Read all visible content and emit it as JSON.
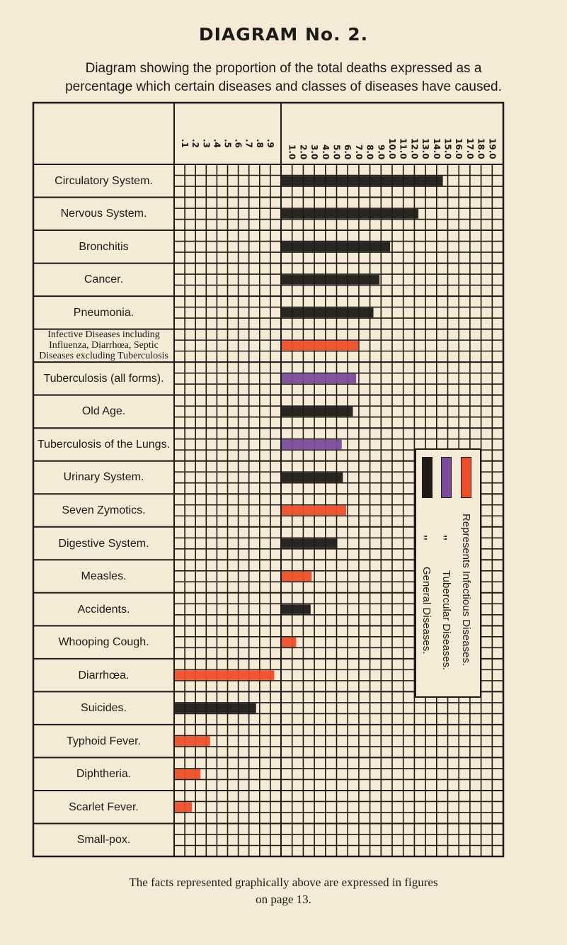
{
  "header": {
    "title": "DIAGRAM No. 2.",
    "subtitle_line1": "Diagram showing the proportion of the total deaths expressed as a",
    "subtitle_line2": "percentage which certain diseases and classes of diseases have caused."
  },
  "footer": {
    "line1": "The facts represented graphically above are expressed in figures",
    "line2": "on page 13."
  },
  "legend": {
    "items": [
      {
        "ditto": "",
        "label": "Represents Infectious Diseases.",
        "color": "#ee4f2a"
      },
      {
        "ditto": ",,",
        "label": "Tubercular Diseases.",
        "color": "#7b4b9c"
      },
      {
        "ditto": ",,",
        "label": "General Diseases.",
        "color": "#1d1a17"
      }
    ]
  },
  "chart_data": {
    "type": "bar",
    "orientation": "horizontal",
    "title": "DIAGRAM No. 2.",
    "xlabel": "",
    "ylabel": "",
    "scale_note_ticks_fine": [
      ".1",
      ".2",
      ".3",
      ".4",
      ".5",
      ".6",
      ".7",
      ".8",
      ".9"
    ],
    "scale_ticks_coarse": [
      "1.0",
      "2.0",
      "3.0",
      "4.0",
      "5.0",
      "6.0",
      "7.0",
      "8.0",
      "9.0",
      "10.0",
      "11.0",
      "12.0",
      "13.0",
      "14.0",
      "15.0",
      "16.0",
      "17.0",
      "18.0",
      "19.0"
    ],
    "xlim_fine": [
      0,
      1
    ],
    "xlim_coarse": [
      0,
      20
    ],
    "grid": true,
    "colors": {
      "infectious": "#ee4f2a",
      "tubercular": "#7b4b9c",
      "general": "#1d1a17"
    },
    "categories": [
      {
        "label": "Circulatory System.",
        "value": 14.5,
        "class": "general"
      },
      {
        "label": "Nervous System.",
        "value": 12.3,
        "class": "general"
      },
      {
        "label": "Bronchitis",
        "value": 9.75,
        "class": "general"
      },
      {
        "label": "Cancer.",
        "value": 8.8,
        "class": "general"
      },
      {
        "label": "Pneumonia.",
        "value": 8.25,
        "class": "general"
      },
      {
        "label": "Infective Diseases including Influenza, Diarrhœa, Septic Diseases excluding Tuberculosis",
        "value": 6.9,
        "class": "infectious",
        "small": true
      },
      {
        "label": "Tuberculosis (all forms).",
        "value": 6.7,
        "class": "tubercular"
      },
      {
        "label": "Old Age.",
        "value": 6.4,
        "class": "general"
      },
      {
        "label": "Tuberculosis of the Lungs.",
        "value": 5.4,
        "class": "tubercular"
      },
      {
        "label": "Urinary System.",
        "value": 5.5,
        "class": "general"
      },
      {
        "label": "Seven Zymotics.",
        "value": 5.8,
        "class": "infectious"
      },
      {
        "label": "Digestive System.",
        "value": 5.0,
        "class": "general"
      },
      {
        "label": "Measles.",
        "value": 2.7,
        "class": "infectious"
      },
      {
        "label": "Accidents.",
        "value": 2.6,
        "class": "general"
      },
      {
        "label": "Whooping Cough.",
        "value": 1.3,
        "class": "infectious"
      },
      {
        "label": "Diarrhœa.",
        "value": 0.93,
        "class": "infectious"
      },
      {
        "label": "Suicides.",
        "value": 0.76,
        "class": "general"
      },
      {
        "label": "Typhoid Fever.",
        "value": 0.33,
        "class": "infectious"
      },
      {
        "label": "Diphtheria.",
        "value": 0.24,
        "class": "infectious"
      },
      {
        "label": "Scarlet Fever.",
        "value": 0.16,
        "class": "infectious"
      },
      {
        "label": "Small-pox.",
        "value": 0,
        "class": "infectious"
      }
    ]
  }
}
